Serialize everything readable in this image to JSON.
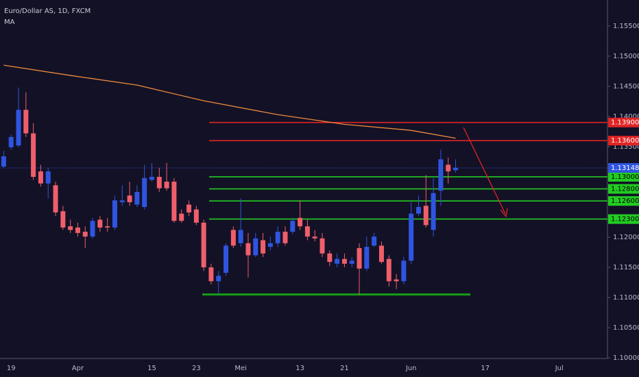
{
  "chart_data": {
    "type": "candlestick",
    "title": "Euro/Dollar AS, 1D, FXCM",
    "up_color": "#2f55e0",
    "down_color": "#ef5f6b",
    "categories": [
      null,
      "19",
      null,
      null,
      null,
      null,
      null,
      null,
      null,
      null,
      "Apr",
      null,
      null,
      null,
      null,
      null,
      null,
      null,
      null,
      null,
      "15",
      null,
      null,
      null,
      null,
      null,
      "23",
      null,
      null,
      null,
      null,
      null,
      "Mei",
      null,
      null,
      null,
      null,
      null,
      null,
      null,
      "13",
      null,
      null,
      null,
      null,
      null,
      "21",
      null,
      null,
      null,
      null,
      null,
      null,
      null,
      null,
      "Jun",
      null,
      null,
      null,
      null,
      null,
      null,
      null,
      null,
      null,
      "17",
      null,
      null,
      null,
      null,
      null,
      null,
      null,
      null,
      null,
      "Jul",
      null,
      null,
      null,
      null,
      null,
      null
    ],
    "open": [
      1.1317,
      1.1349,
      1.1352,
      1.1411,
      1.1372,
      1.1309,
      1.1289,
      1.1286,
      1.1243,
      1.1218,
      1.1216,
      1.1209,
      1.1201,
      1.1229,
      1.1218,
      1.1216,
      1.1258,
      1.1269,
      1.1254,
      1.125,
      1.1295,
      1.13,
      1.1292,
      1.1292,
      1.1239,
      1.1254,
      1.1246,
      1.1224,
      1.115,
      1.1127,
      1.1141,
      1.1212,
      1.119,
      1.119,
      1.117,
      1.1195,
      1.1184,
      1.119,
      1.1209,
      1.1209,
      1.1232,
      1.1218,
      1.1201,
      1.1198,
      1.1173,
      1.1156,
      1.1164,
      1.1156,
      1.1182,
      1.1148,
      1.1186,
      1.1186,
      1.1164,
      1.113,
      1.1127,
      1.1161,
      1.1239,
      1.1252,
      1.1212,
      1.1277,
      1.132,
      1.1311,
      null,
      null,
      null,
      null,
      null,
      null,
      null,
      null,
      null,
      null,
      null,
      null,
      null,
      null,
      null,
      null,
      null,
      null,
      null,
      null
    ],
    "high": [
      1.1343,
      1.137,
      1.1448,
      1.144,
      1.1389,
      1.132,
      1.1315,
      1.1292,
      1.1252,
      1.1229,
      1.1224,
      1.1218,
      1.1232,
      1.1235,
      1.1232,
      1.1269,
      1.1286,
      1.1292,
      1.1286,
      1.132,
      1.1323,
      1.1315,
      1.1323,
      1.1298,
      1.1246,
      1.1261,
      1.1252,
      1.1229,
      1.1156,
      1.1144,
      1.119,
      1.1218,
      1.1264,
      1.1207,
      1.1207,
      1.1207,
      1.1201,
      1.1218,
      1.1218,
      1.1232,
      1.1261,
      1.1229,
      1.1212,
      1.1207,
      1.1178,
      1.1173,
      1.1173,
      1.1167,
      1.119,
      1.1201,
      1.1207,
      1.1193,
      1.117,
      1.1139,
      1.1167,
      1.1258,
      1.1269,
      1.1303,
      1.1298,
      1.1345,
      1.1332,
      1.1329,
      null,
      null,
      null,
      null,
      null,
      null,
      null,
      null,
      null,
      null,
      null,
      null,
      null,
      null,
      null,
      null,
      null,
      null,
      null,
      null
    ],
    "low": [
      1.1315,
      1.1345,
      1.1349,
      1.1366,
      1.1295,
      1.1284,
      1.1264,
      1.1235,
      1.1212,
      1.1207,
      1.1201,
      1.1182,
      1.1198,
      1.1209,
      1.1209,
      1.1212,
      1.1252,
      1.1252,
      1.125,
      1.1246,
      1.1292,
      1.1275,
      1.1277,
      1.1224,
      1.1224,
      1.1235,
      1.122,
      1.1144,
      1.1122,
      1.1107,
      1.1136,
      1.1182,
      1.1184,
      1.1133,
      1.1167,
      1.1167,
      1.1178,
      1.1184,
      1.1186,
      1.1205,
      1.1212,
      1.1195,
      1.1193,
      1.1167,
      1.1152,
      1.115,
      1.115,
      1.115,
      1.1105,
      1.1144,
      1.1184,
      1.1156,
      1.1118,
      1.1114,
      1.1122,
      1.1156,
      1.1235,
      1.1216,
      1.1201,
      1.1252,
      1.1289,
      1.1307,
      null,
      null,
      null,
      null,
      null,
      null,
      null,
      null,
      null,
      null,
      null,
      null,
      null,
      null,
      null,
      null,
      null,
      null,
      null,
      null
    ],
    "close": [
      1.1334,
      1.1366,
      1.1411,
      1.1372,
      1.13,
      1.1289,
      1.1309,
      1.1241,
      1.1216,
      1.1212,
      1.1207,
      1.1201,
      1.1227,
      1.1216,
      1.1216,
      1.1261,
      1.1261,
      1.1258,
      1.1275,
      1.1298,
      1.13,
      1.1281,
      1.1281,
      1.1227,
      1.1227,
      1.1241,
      1.1224,
      1.115,
      1.1127,
      1.1136,
      1.1186,
      1.1186,
      1.1212,
      1.117,
      1.1198,
      1.1173,
      1.119,
      1.1209,
      1.119,
      1.1227,
      1.1218,
      1.1201,
      1.1198,
      1.1173,
      1.1159,
      1.1164,
      1.1156,
      1.1161,
      1.1148,
      1.1184,
      1.1201,
      1.1159,
      1.1127,
      1.1127,
      1.1161,
      1.1239,
      1.125,
      1.122,
      1.1273,
      1.1329,
      1.1309,
      1.1315,
      null,
      null,
      null,
      null,
      null,
      null,
      null,
      null,
      null,
      null,
      null,
      null,
      null,
      null,
      null,
      null,
      null,
      null,
      null,
      null
    ],
    "ma": {
      "name": "MA",
      "color": "#f08a3c",
      "x": [
        0,
        9,
        18,
        27,
        37,
        46,
        55,
        61
      ],
      "values": [
        1.1485,
        1.1468,
        1.1452,
        1.1426,
        1.1403,
        1.1387,
        1.1377,
        1.1364
      ]
    },
    "ylim": [
      1.0999,
      1.1593
    ],
    "yticks": [
      {
        "value": 1.155,
        "label": "1.15500"
      },
      {
        "value": 1.15,
        "label": "1.15000"
      },
      {
        "value": 1.145,
        "label": "1.14500"
      },
      {
        "value": 1.14,
        "label": "1.14000"
      },
      {
        "value": 1.135,
        "label": "1.13500"
      },
      {
        "value": 1.12,
        "label": "1.12000"
      },
      {
        "value": 1.115,
        "label": "1.11500"
      },
      {
        "value": 1.11,
        "label": "1.11000"
      },
      {
        "value": 1.105,
        "label": "1.10500"
      },
      {
        "value": 1.1,
        "label": "1.10000"
      }
    ],
    "levels": [
      {
        "value": 1.139,
        "label": "1.13900",
        "color": "#e02424"
      },
      {
        "value": 1.136,
        "label": "1.13600",
        "color": "#e02424"
      },
      {
        "value": 1.13,
        "label": "1.13000",
        "color": "#22cc22"
      },
      {
        "value": 1.128,
        "label": "1.12800",
        "color": "#22cc22"
      },
      {
        "value": 1.126,
        "label": "1.12600",
        "color": "#22cc22"
      },
      {
        "value": 1.123,
        "label": "1.12300",
        "color": "#22cc22"
      },
      {
        "value": 1.1105,
        "color": "#14a014"
      }
    ],
    "last_price": {
      "value": 1.13148,
      "label": "1.13148",
      "color": "#2f55e0"
    }
  }
}
